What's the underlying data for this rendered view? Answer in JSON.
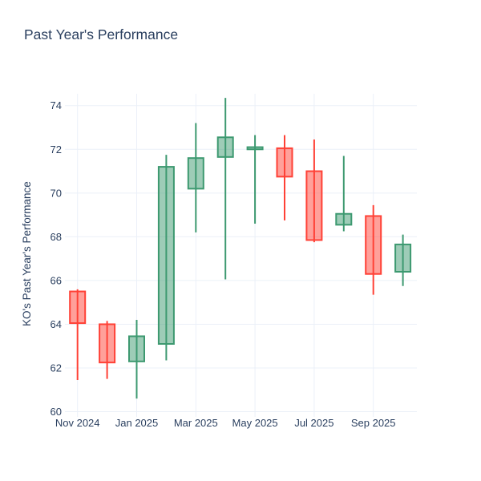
{
  "chart_data": {
    "type": "candlestick",
    "title": "Past Year's Performance",
    "ylabel": "KO's Past Year's Performance",
    "xlabel": "",
    "legend": false,
    "grid": true,
    "background": "#ffffff",
    "ylim": [
      59.91,
      74.54
    ],
    "y_ticks": [
      60,
      62,
      64,
      66,
      68,
      70,
      72,
      74
    ],
    "x_tick_labels": [
      "Nov 2024",
      "Jan 2025",
      "Mar 2025",
      "May 2025",
      "Jul 2025",
      "Sep 2025"
    ],
    "x_tick_indices": [
      0,
      2,
      4,
      6,
      8,
      10
    ],
    "candles": [
      {
        "open": 65.5,
        "high": 65.6,
        "low": 61.45,
        "close": 64.05
      },
      {
        "open": 64.0,
        "high": 64.15,
        "low": 61.5,
        "close": 62.25
      },
      {
        "open": 62.3,
        "high": 64.2,
        "low": 60.6,
        "close": 63.45
      },
      {
        "open": 63.1,
        "high": 71.75,
        "low": 62.35,
        "close": 71.2
      },
      {
        "open": 70.2,
        "high": 73.2,
        "low": 68.2,
        "close": 71.6
      },
      {
        "open": 71.65,
        "high": 74.35,
        "low": 66.05,
        "close": 72.55
      },
      {
        "open": 72.0,
        "high": 72.65,
        "low": 68.6,
        "close": 72.1
      },
      {
        "open": 72.05,
        "high": 72.65,
        "low": 68.75,
        "close": 70.75
      },
      {
        "open": 71.0,
        "high": 72.45,
        "low": 67.75,
        "close": 67.85
      },
      {
        "open": 68.55,
        "high": 71.7,
        "low": 68.25,
        "close": 69.05
      },
      {
        "open": 68.95,
        "high": 69.45,
        "low": 65.35,
        "close": 66.3
      },
      {
        "open": 66.4,
        "high": 68.1,
        "low": 65.75,
        "close": 67.65
      }
    ],
    "colors": {
      "increasing": "#3D9970",
      "decreasing": "#FF4136",
      "body_fill_opacity": 0.5,
      "grid": "#EBF0F8",
      "text": "#2a3f5f",
      "title_text": "#2a3f5f"
    }
  }
}
